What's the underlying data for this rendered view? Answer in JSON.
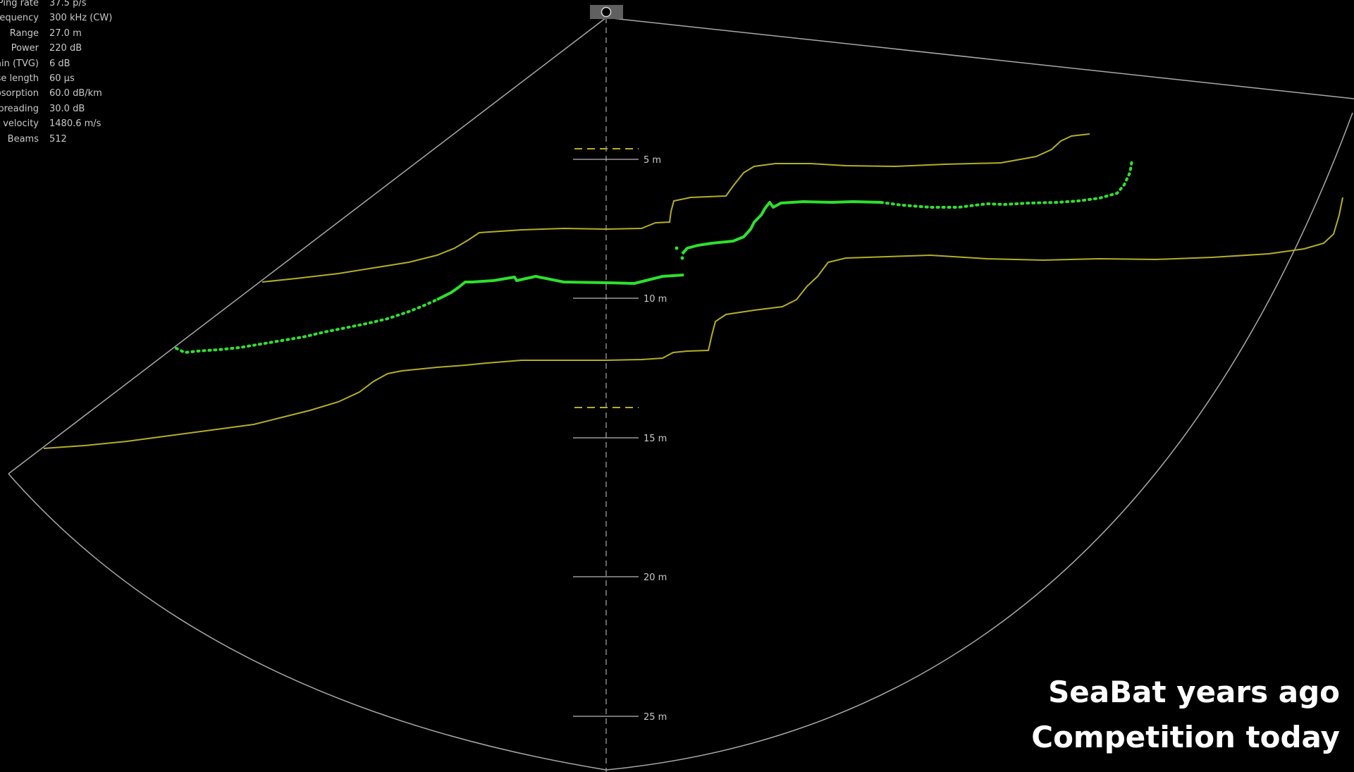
{
  "parameters": [
    {
      "label": "Ping rate",
      "value": "37.5 p/s"
    },
    {
      "label": "Frequency",
      "value": "300 kHz (CW)"
    },
    {
      "label": "Range",
      "value": "27.0 m"
    },
    {
      "label": "Power",
      "value": "220 dB"
    },
    {
      "label": "Gain (TVG)",
      "value": "6 dB"
    },
    {
      "label": "Pulse length",
      "value": "60 µs"
    },
    {
      "label": "Absorption",
      "value": "60.0 dB/km"
    },
    {
      "label": "Spreading",
      "value": "30.0 dB"
    },
    {
      "label": "Sound velocity",
      "value": "1480.6 m/s"
    },
    {
      "label": "Beams",
      "value": "512"
    }
  ],
  "range_rings": [
    "5 m",
    "10 m",
    "15 m",
    "20 m",
    "25 m"
  ],
  "caption": {
    "line1": "SeaBat years ago",
    "line2": "Competition today"
  },
  "colors": {
    "background": "#000000",
    "fan_outline": "#a8a8a8",
    "bottom_detection": "#2ee02e",
    "gate_lines": "#b5ad25",
    "text": "#c8c8c8",
    "caption": "#ffffff"
  },
  "icons": {
    "sonar_head": "sonar-head-icon"
  }
}
